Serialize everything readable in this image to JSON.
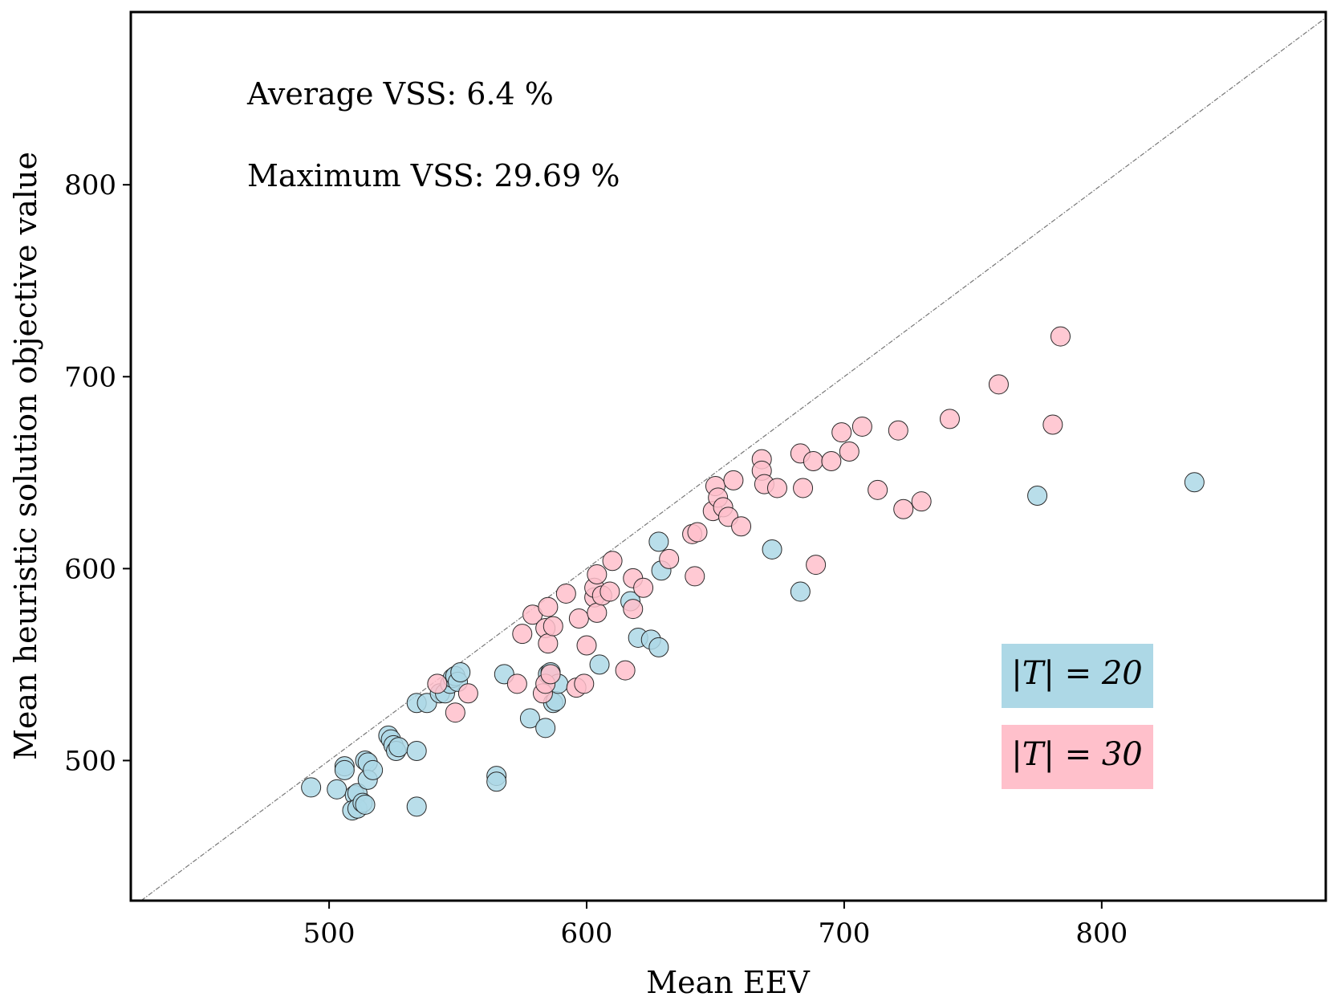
{
  "chart_data": {
    "type": "scatter",
    "title": "",
    "xlabel": "Mean EEV",
    "ylabel": "Mean heuristic solution objective value",
    "xlim": [
      423,
      887
    ],
    "ylim": [
      427,
      890
    ],
    "xticks": [
      500,
      600,
      700,
      800
    ],
    "yticks": [
      500,
      600,
      700,
      800
    ],
    "grid": false,
    "legend_position": "bottom-right",
    "reference_line": "y = x",
    "annotations": [
      "Average VSS: 6.4 %",
      "Maximum VSS: 29.69 %"
    ],
    "series": [
      {
        "name": "|T| = 20",
        "color": "#add8e6",
        "points": [
          [
            493,
            486
          ],
          [
            503,
            485
          ],
          [
            506,
            497
          ],
          [
            506,
            495
          ],
          [
            510,
            482
          ],
          [
            511,
            483
          ],
          [
            509,
            474
          ],
          [
            511,
            475
          ],
          [
            513,
            478
          ],
          [
            514,
            477
          ],
          [
            514,
            500
          ],
          [
            515,
            499
          ],
          [
            515,
            490
          ],
          [
            517,
            495
          ],
          [
            523,
            513
          ],
          [
            524,
            511
          ],
          [
            525,
            508
          ],
          [
            526,
            505
          ],
          [
            527,
            507
          ],
          [
            534,
            505
          ],
          [
            534,
            530
          ],
          [
            534,
            476
          ],
          [
            538,
            530
          ],
          [
            543,
            535
          ],
          [
            545,
            535
          ],
          [
            547,
            540
          ],
          [
            548,
            543
          ],
          [
            549,
            544
          ],
          [
            550,
            541
          ],
          [
            551,
            546
          ],
          [
            565,
            492
          ],
          [
            565,
            489
          ],
          [
            568,
            545
          ],
          [
            578,
            522
          ],
          [
            584,
            517
          ],
          [
            585,
            545
          ],
          [
            586,
            546
          ],
          [
            587,
            530
          ],
          [
            588,
            531
          ],
          [
            589,
            540
          ],
          [
            605,
            550
          ],
          [
            617,
            583
          ],
          [
            620,
            564
          ],
          [
            625,
            563
          ],
          [
            628,
            559
          ],
          [
            628,
            614
          ],
          [
            629,
            599
          ],
          [
            672,
            610
          ],
          [
            683,
            588
          ],
          [
            775,
            638
          ],
          [
            836,
            645
          ]
        ]
      },
      {
        "name": "|T| = 30",
        "color": "#ffc0cb",
        "points": [
          [
            542,
            540
          ],
          [
            549,
            525
          ],
          [
            554,
            535
          ],
          [
            573,
            540
          ],
          [
            575,
            566
          ],
          [
            579,
            576
          ],
          [
            583,
            535
          ],
          [
            584,
            540
          ],
          [
            584,
            569
          ],
          [
            585,
            561
          ],
          [
            585,
            580
          ],
          [
            586,
            545
          ],
          [
            587,
            570
          ],
          [
            592,
            587
          ],
          [
            596,
            538
          ],
          [
            597,
            574
          ],
          [
            599,
            540
          ],
          [
            600,
            560
          ],
          [
            603,
            585
          ],
          [
            603,
            590
          ],
          [
            604,
            597
          ],
          [
            604,
            577
          ],
          [
            606,
            586
          ],
          [
            609,
            588
          ],
          [
            610,
            604
          ],
          [
            615,
            547
          ],
          [
            618,
            595
          ],
          [
            618,
            579
          ],
          [
            622,
            590
          ],
          [
            632,
            605
          ],
          [
            641,
            618
          ],
          [
            642,
            596
          ],
          [
            643,
            619
          ],
          [
            649,
            630
          ],
          [
            650,
            643
          ],
          [
            651,
            637
          ],
          [
            653,
            632
          ],
          [
            655,
            627
          ],
          [
            657,
            646
          ],
          [
            660,
            622
          ],
          [
            668,
            657
          ],
          [
            668,
            651
          ],
          [
            669,
            644
          ],
          [
            674,
            642
          ],
          [
            683,
            660
          ],
          [
            684,
            642
          ],
          [
            688,
            656
          ],
          [
            689,
            602
          ],
          [
            695,
            656
          ],
          [
            699,
            671
          ],
          [
            702,
            661
          ],
          [
            707,
            674
          ],
          [
            713,
            641
          ],
          [
            721,
            672
          ],
          [
            723,
            631
          ],
          [
            730,
            635
          ],
          [
            741,
            678
          ],
          [
            760,
            696
          ],
          [
            781,
            675
          ],
          [
            784,
            721
          ]
        ]
      }
    ]
  }
}
